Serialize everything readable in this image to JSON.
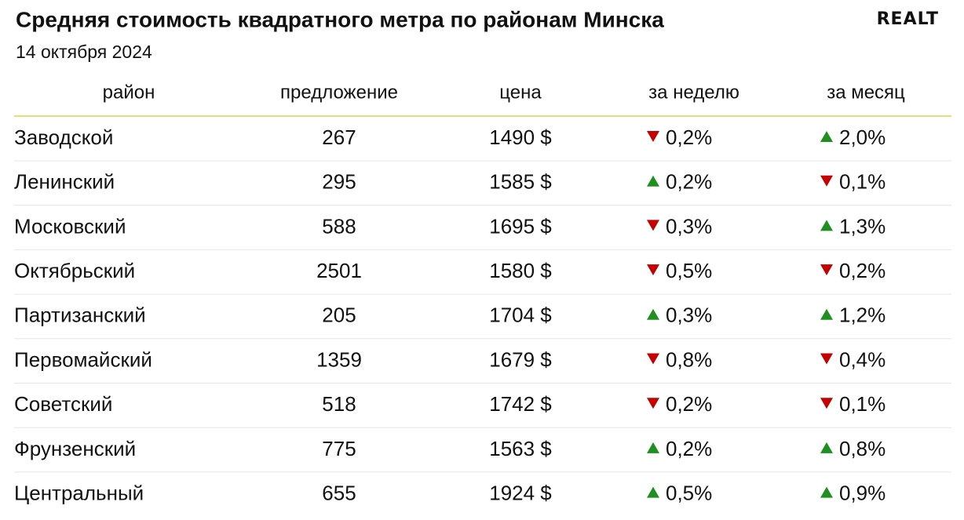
{
  "header": {
    "title": "Средняя стоимость квадратного метра по районам Минска",
    "date": "14 октября 2024",
    "logo": "REALT"
  },
  "table": {
    "columns": [
      "район",
      "предложение",
      "цена",
      "за неделю",
      "за месяц"
    ],
    "up_color": "#1f8f1f",
    "down_color": "#c40000",
    "rows": [
      {
        "district": "Заводской",
        "supply": "267",
        "price": "1490 $",
        "week": {
          "text": "0,2%",
          "dir": "down"
        },
        "month": {
          "text": "2,0%",
          "dir": "up"
        }
      },
      {
        "district": "Ленинский",
        "supply": "295",
        "price": "1585 $",
        "week": {
          "text": "0,2%",
          "dir": "up"
        },
        "month": {
          "text": "0,1%",
          "dir": "down"
        }
      },
      {
        "district": "Московский",
        "supply": "588",
        "price": "1695 $",
        "week": {
          "text": "0,3%",
          "dir": "down"
        },
        "month": {
          "text": "1,3%",
          "dir": "up"
        }
      },
      {
        "district": "Октябрьский",
        "supply": "2501",
        "price": "1580 $",
        "week": {
          "text": "0,5%",
          "dir": "down"
        },
        "month": {
          "text": "0,2%",
          "dir": "down"
        }
      },
      {
        "district": "Партизанский",
        "supply": "205",
        "price": "1704 $",
        "week": {
          "text": "0,3%",
          "dir": "up"
        },
        "month": {
          "text": "1,2%",
          "dir": "up"
        }
      },
      {
        "district": "Первомайский",
        "supply": "1359",
        "price": "1679 $",
        "week": {
          "text": "0,8%",
          "dir": "down"
        },
        "month": {
          "text": "0,4%",
          "dir": "down"
        }
      },
      {
        "district": "Советский",
        "supply": "518",
        "price": "1742 $",
        "week": {
          "text": "0,2%",
          "dir": "down"
        },
        "month": {
          "text": "0,1%",
          "dir": "down"
        }
      },
      {
        "district": "Фрунзенский",
        "supply": "775",
        "price": "1563 $",
        "week": {
          "text": "0,2%",
          "dir": "up"
        },
        "month": {
          "text": "0,8%",
          "dir": "up"
        }
      },
      {
        "district": "Центральный",
        "supply": "655",
        "price": "1924 $",
        "week": {
          "text": "0,5%",
          "dir": "up"
        },
        "month": {
          "text": "0,9%",
          "dir": "up"
        }
      }
    ]
  }
}
